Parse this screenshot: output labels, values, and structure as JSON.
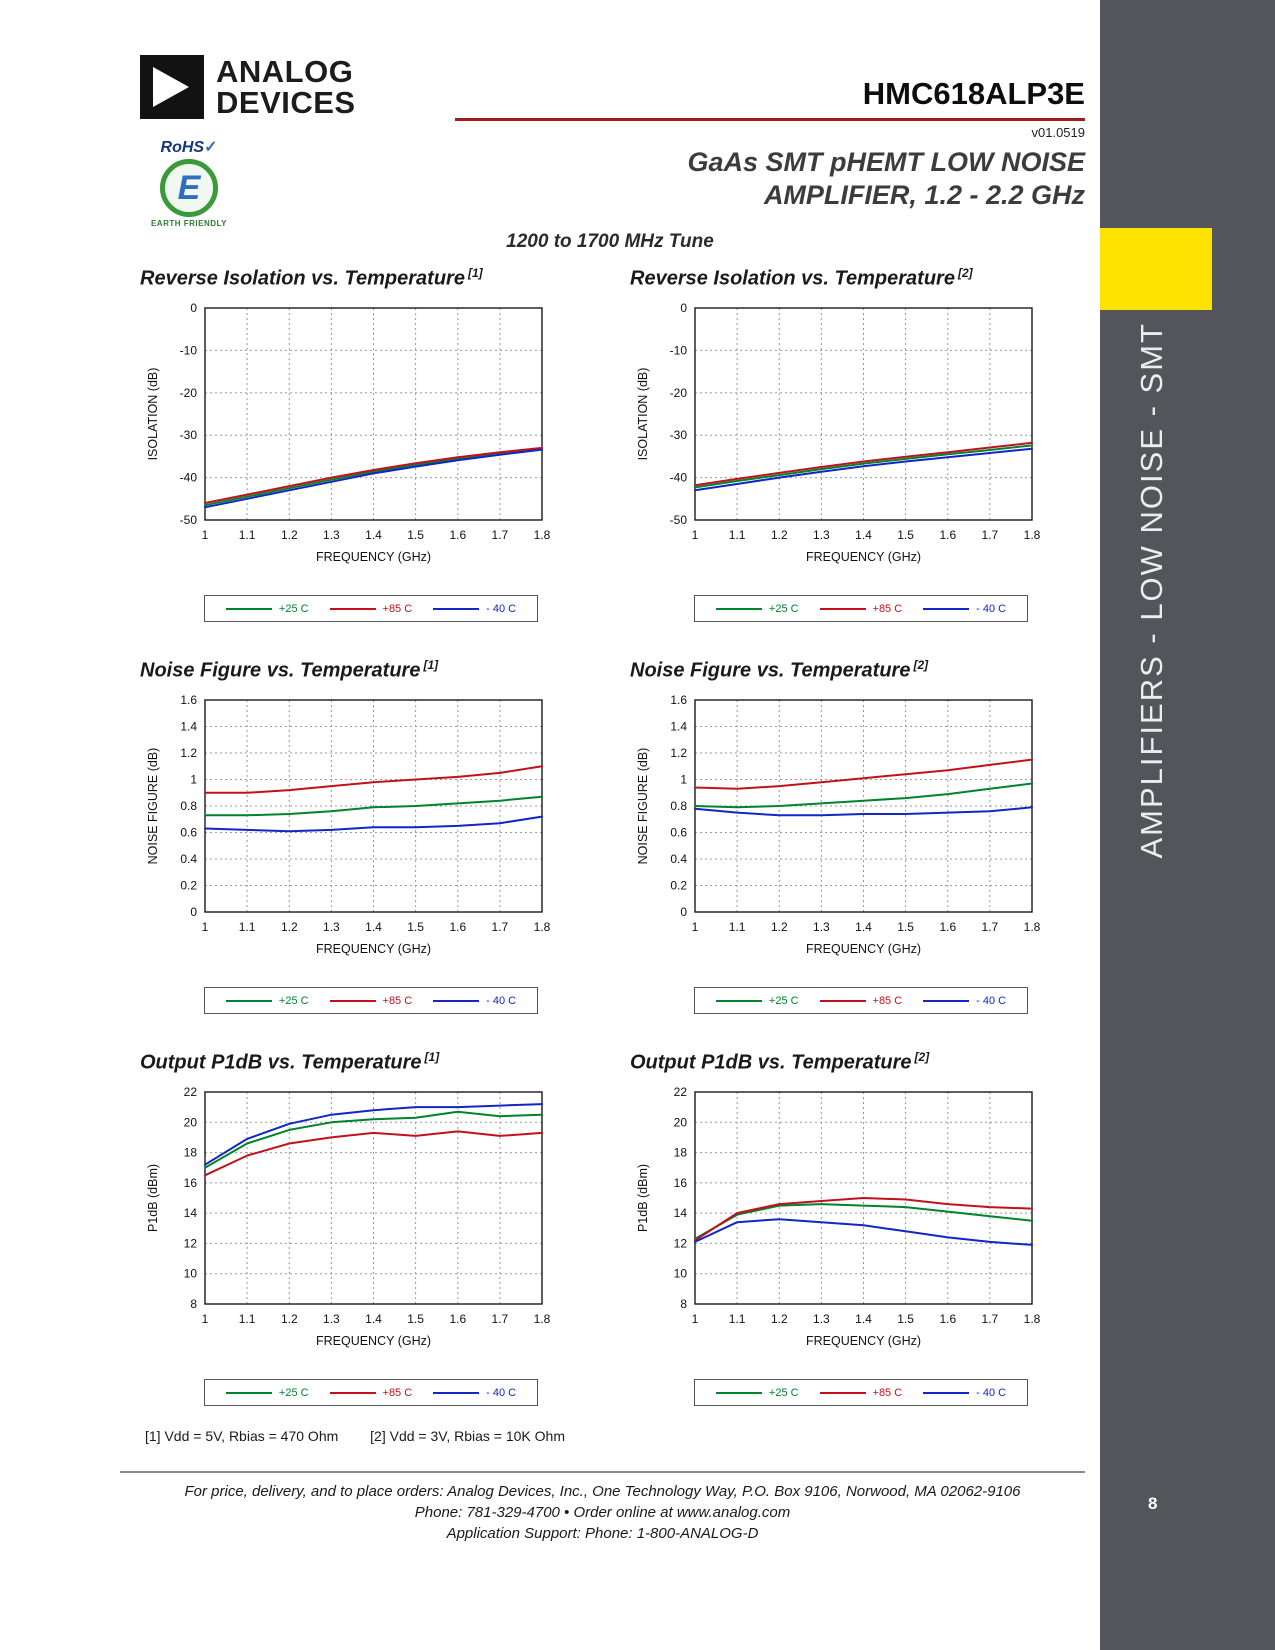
{
  "header": {
    "brand_line1": "ANALOG",
    "brand_line2": "DEVICES",
    "part_number": "HMC618ALP3E",
    "version": "v01.0519",
    "subtitle_line1": "GaAs SMT pHEMT LOW NOISE",
    "subtitle_line2": "AMPLIFIER, 1.2 - 2.2 GHz",
    "tune_line": "1200 to 1700 MHz Tune"
  },
  "rohs": {
    "label": "RoHS",
    "check": "✓",
    "letter": "E",
    "caption": "EARTH FRIENDLY"
  },
  "sidebar": {
    "text": "AMPLIFIERS - LOW NOISE - SMT",
    "page_number": "8"
  },
  "footnotes": {
    "note1": "[1] Vdd = 5V, Rbias = 470 Ohm",
    "note2": "[2] Vdd = 3V, Rbias = 10K Ohm"
  },
  "footer": {
    "line1": "For price, delivery, and to place orders: Analog Devices, Inc., One Technology Way, P.O. Box 9106, Norwood, MA 02062-9106",
    "line2": "Phone: 781-329-4700 • Order online at www.analog.com",
    "line3": "Application Support: Phone: 1-800-ANALOG-D"
  },
  "colors": {
    "series_plus25c": "#00832d",
    "series_plus85c": "#c1121c",
    "series_minus40c": "#1126c4",
    "sidebar_bg": "#54555a",
    "sidebar_accent": "#fde300",
    "header_rule": "#9e1b1e"
  },
  "chart_data": [
    {
      "type": "line",
      "title": "Reverse Isolation vs. Temperature",
      "ref": "[1]",
      "xlabel": "FREQUENCY (GHz)",
      "ylabel": "ISOLATION (dB)",
      "xlim": [
        1,
        1.8
      ],
      "ylim": [
        -50,
        0
      ],
      "xticks": [
        1,
        1.1,
        1.2,
        1.3,
        1.4,
        1.5,
        1.6,
        1.7,
        1.8
      ],
      "yticks": [
        0,
        -10,
        -20,
        -30,
        -40,
        -50
      ],
      "grid": true,
      "legend_position": "below",
      "x": [
        1,
        1.1,
        1.2,
        1.3,
        1.4,
        1.5,
        1.6,
        1.7,
        1.8
      ],
      "series": [
        {
          "name": "+25 C",
          "color": "#00832d",
          "values": [
            -46.5,
            -44.5,
            -42.5,
            -40.5,
            -38.6,
            -37.0,
            -35.6,
            -34.4,
            -33.3
          ]
        },
        {
          "name": "+85 C",
          "color": "#c1121c",
          "values": [
            -46.0,
            -44.0,
            -42.0,
            -40.0,
            -38.2,
            -36.6,
            -35.2,
            -34.0,
            -33.0
          ]
        },
        {
          "name": "- 40 C",
          "color": "#1126c4",
          "values": [
            -47.0,
            -45.0,
            -43.0,
            -41.0,
            -39.0,
            -37.4,
            -35.9,
            -34.6,
            -33.4
          ]
        }
      ]
    },
    {
      "type": "line",
      "title": "Reverse Isolation vs. Temperature",
      "ref": "[2]",
      "xlabel": "FREQUENCY (GHz)",
      "ylabel": "ISOLATION (dB)",
      "xlim": [
        1,
        1.8
      ],
      "ylim": [
        -50,
        0
      ],
      "xticks": [
        1,
        1.1,
        1.2,
        1.3,
        1.4,
        1.5,
        1.6,
        1.7,
        1.8
      ],
      "yticks": [
        0,
        -10,
        -20,
        -30,
        -40,
        -50
      ],
      "grid": true,
      "legend_position": "below",
      "x": [
        1,
        1.1,
        1.2,
        1.3,
        1.4,
        1.5,
        1.6,
        1.7,
        1.8
      ],
      "series": [
        {
          "name": "+25 C",
          "color": "#00832d",
          "values": [
            -42.3,
            -40.8,
            -39.4,
            -38.0,
            -36.7,
            -35.6,
            -34.5,
            -33.5,
            -32.4
          ]
        },
        {
          "name": "+85 C",
          "color": "#c1121c",
          "values": [
            -41.8,
            -40.3,
            -38.9,
            -37.5,
            -36.2,
            -35.1,
            -34.0,
            -32.9,
            -31.8
          ]
        },
        {
          "name": "- 40 C",
          "color": "#1126c4",
          "values": [
            -43.0,
            -41.5,
            -40.0,
            -38.6,
            -37.3,
            -36.2,
            -35.2,
            -34.2,
            -33.2
          ]
        }
      ]
    },
    {
      "type": "line",
      "title": "Noise Figure vs. Temperature",
      "ref": "[1]",
      "xlabel": "FREQUENCY (GHz)",
      "ylabel": "NOISE FIGURE (dB)",
      "xlim": [
        1,
        1.8
      ],
      "ylim": [
        0,
        1.6
      ],
      "xticks": [
        1,
        1.1,
        1.2,
        1.3,
        1.4,
        1.5,
        1.6,
        1.7,
        1.8
      ],
      "yticks": [
        0,
        0.2,
        0.4,
        0.6,
        0.8,
        1,
        1.2,
        1.4,
        1.6
      ],
      "grid": true,
      "legend_position": "below",
      "x": [
        1,
        1.1,
        1.2,
        1.3,
        1.4,
        1.5,
        1.6,
        1.7,
        1.8
      ],
      "series": [
        {
          "name": "+25 C",
          "color": "#00832d",
          "values": [
            0.73,
            0.73,
            0.74,
            0.76,
            0.79,
            0.8,
            0.82,
            0.84,
            0.87
          ]
        },
        {
          "name": "+85 C",
          "color": "#c1121c",
          "values": [
            0.9,
            0.9,
            0.92,
            0.95,
            0.98,
            1.0,
            1.02,
            1.05,
            1.1
          ]
        },
        {
          "name": "- 40 C",
          "color": "#1126c4",
          "values": [
            0.63,
            0.62,
            0.61,
            0.62,
            0.64,
            0.64,
            0.65,
            0.67,
            0.72
          ]
        }
      ]
    },
    {
      "type": "line",
      "title": "Noise Figure vs. Temperature",
      "ref": "[2]",
      "xlabel": "FREQUENCY (GHz)",
      "ylabel": "NOISE FIGURE (dB)",
      "xlim": [
        1,
        1.8
      ],
      "ylim": [
        0,
        1.6
      ],
      "xticks": [
        1,
        1.1,
        1.2,
        1.3,
        1.4,
        1.5,
        1.6,
        1.7,
        1.8
      ],
      "yticks": [
        0,
        0.2,
        0.4,
        0.6,
        0.8,
        1,
        1.2,
        1.4,
        1.6
      ],
      "grid": true,
      "legend_position": "below",
      "x": [
        1,
        1.1,
        1.2,
        1.3,
        1.4,
        1.5,
        1.6,
        1.7,
        1.8
      ],
      "series": [
        {
          "name": "+25 C",
          "color": "#00832d",
          "values": [
            0.8,
            0.79,
            0.8,
            0.82,
            0.84,
            0.86,
            0.89,
            0.93,
            0.97
          ]
        },
        {
          "name": "+85 C",
          "color": "#c1121c",
          "values": [
            0.94,
            0.93,
            0.95,
            0.98,
            1.01,
            1.04,
            1.07,
            1.11,
            1.15
          ]
        },
        {
          "name": "- 40 C",
          "color": "#1126c4",
          "values": [
            0.78,
            0.75,
            0.73,
            0.73,
            0.74,
            0.74,
            0.75,
            0.76,
            0.79
          ]
        }
      ]
    },
    {
      "type": "line",
      "title": "Output P1dB vs. Temperature",
      "ref": "[1]",
      "xlabel": "FREQUENCY (GHz)",
      "ylabel": "P1dB  (dBm)",
      "xlim": [
        1,
        1.8
      ],
      "ylim": [
        8,
        22
      ],
      "xticks": [
        1,
        1.1,
        1.2,
        1.3,
        1.4,
        1.5,
        1.6,
        1.7,
        1.8
      ],
      "yticks": [
        8,
        10,
        12,
        14,
        16,
        18,
        20,
        22
      ],
      "grid": true,
      "legend_position": "below",
      "x": [
        1,
        1.1,
        1.2,
        1.3,
        1.4,
        1.5,
        1.6,
        1.7,
        1.8
      ],
      "series": [
        {
          "name": "+25 C",
          "color": "#00832d",
          "values": [
            17.0,
            18.6,
            19.5,
            20.0,
            20.2,
            20.3,
            20.7,
            20.4,
            20.5
          ]
        },
        {
          "name": "+85 C",
          "color": "#c1121c",
          "values": [
            16.5,
            17.8,
            18.6,
            19.0,
            19.3,
            19.1,
            19.4,
            19.1,
            19.3
          ]
        },
        {
          "name": "- 40 C",
          "color": "#1126c4",
          "values": [
            17.2,
            18.9,
            19.9,
            20.5,
            20.8,
            21.0,
            21.0,
            21.1,
            21.2
          ]
        }
      ]
    },
    {
      "type": "line",
      "title": "Output P1dB vs. Temperature",
      "ref": "[2]",
      "xlabel": "FREQUENCY (GHz)",
      "ylabel": "P1dB  (dBm)",
      "xlim": [
        1,
        1.8
      ],
      "ylim": [
        8,
        22
      ],
      "xticks": [
        1,
        1.1,
        1.2,
        1.3,
        1.4,
        1.5,
        1.6,
        1.7,
        1.8
      ],
      "yticks": [
        8,
        10,
        12,
        14,
        16,
        18,
        20,
        22
      ],
      "grid": true,
      "legend_position": "below",
      "x": [
        1,
        1.1,
        1.2,
        1.3,
        1.4,
        1.5,
        1.6,
        1.7,
        1.8
      ],
      "series": [
        {
          "name": "+25 C",
          "color": "#00832d",
          "values": [
            12.3,
            13.9,
            14.5,
            14.6,
            14.5,
            14.4,
            14.1,
            13.8,
            13.5
          ]
        },
        {
          "name": "+85 C",
          "color": "#c1121c",
          "values": [
            12.2,
            14.0,
            14.6,
            14.8,
            15.0,
            14.9,
            14.6,
            14.4,
            14.3
          ]
        },
        {
          "name": "- 40 C",
          "color": "#1126c4",
          "values": [
            12.1,
            13.4,
            13.6,
            13.4,
            13.2,
            12.8,
            12.4,
            12.1,
            11.9
          ]
        }
      ]
    }
  ]
}
